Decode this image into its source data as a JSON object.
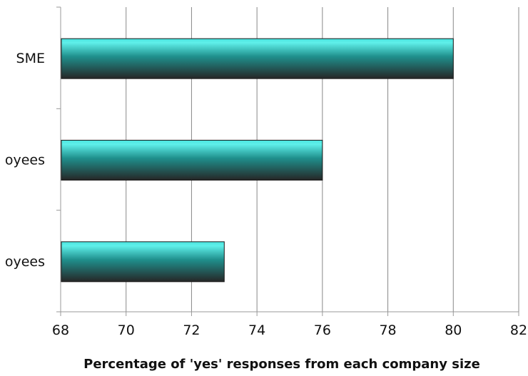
{
  "chart_data": {
    "type": "bar",
    "orientation": "horizontal",
    "categories": [
      "SME",
      "oyees",
      "oyees"
    ],
    "values": [
      80,
      76,
      73
    ],
    "xlabel": "Percentage of 'yes' responses from each company size",
    "ylabel": "",
    "xlim": [
      68,
      82
    ],
    "xticks": [
      "68",
      "70",
      "72",
      "74",
      "76",
      "78",
      "80",
      "82"
    ],
    "grid": "vertical",
    "legend": "none",
    "colors": {
      "bar_top": "#49e3de",
      "bar_mid": "#1f8f8c",
      "bar_bottom": "#262626",
      "gridline": "#888888",
      "axis": "#999999"
    }
  }
}
